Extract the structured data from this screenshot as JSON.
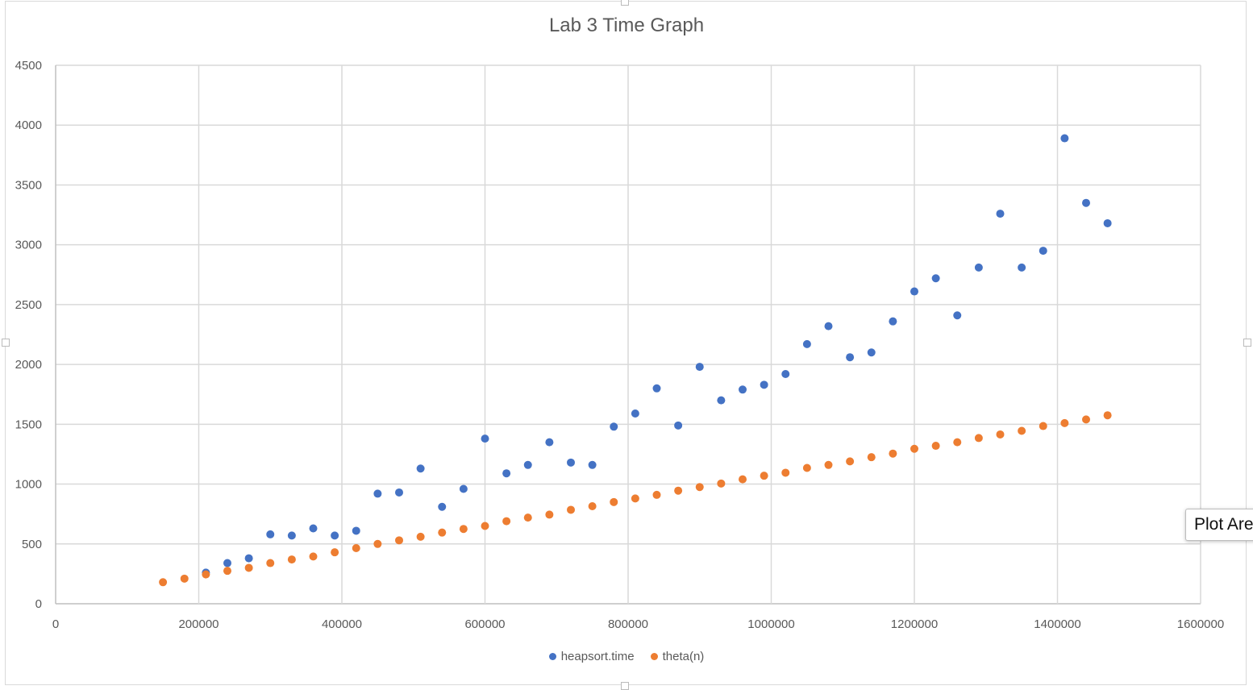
{
  "chart_data": {
    "type": "scatter",
    "title": "Lab 3 Time Graph",
    "xlabel": "",
    "ylabel": "",
    "xlim": [
      0,
      1600000
    ],
    "ylim": [
      0,
      4500
    ],
    "x_ticks": [
      "0",
      "200000",
      "400000",
      "600000",
      "800000",
      "1000000",
      "1200000",
      "1400000",
      "1600000"
    ],
    "y_ticks": [
      "0",
      "500",
      "1000",
      "1500",
      "2000",
      "2500",
      "3000",
      "3500",
      "4000",
      "4500"
    ],
    "grid": true,
    "legend_position": "bottom",
    "series": [
      {
        "name": "heapsort.time",
        "color": "#4472c4",
        "points": [
          [
            210000,
            260
          ],
          [
            240000,
            340
          ],
          [
            270000,
            380
          ],
          [
            300000,
            580
          ],
          [
            330000,
            570
          ],
          [
            360000,
            630
          ],
          [
            390000,
            570
          ],
          [
            420000,
            610
          ],
          [
            450000,
            920
          ],
          [
            480000,
            930
          ],
          [
            510000,
            1130
          ],
          [
            540000,
            810
          ],
          [
            570000,
            960
          ],
          [
            600000,
            1380
          ],
          [
            630000,
            1090
          ],
          [
            660000,
            1160
          ],
          [
            690000,
            1350
          ],
          [
            720000,
            1180
          ],
          [
            750000,
            1160
          ],
          [
            780000,
            1480
          ],
          [
            810000,
            1590
          ],
          [
            840000,
            1800
          ],
          [
            870000,
            1490
          ],
          [
            900000,
            1980
          ],
          [
            930000,
            1700
          ],
          [
            960000,
            1790
          ],
          [
            990000,
            1830
          ],
          [
            1020000,
            1920
          ],
          [
            1050000,
            2170
          ],
          [
            1080000,
            2320
          ],
          [
            1110000,
            2060
          ],
          [
            1140000,
            2100
          ],
          [
            1170000,
            2360
          ],
          [
            1200000,
            2610
          ],
          [
            1230000,
            2720
          ],
          [
            1260000,
            2410
          ],
          [
            1290000,
            2810
          ],
          [
            1320000,
            3260
          ],
          [
            1350000,
            2810
          ],
          [
            1380000,
            2950
          ],
          [
            1410000,
            3890
          ],
          [
            1440000,
            3350
          ],
          [
            1470000,
            3180
          ]
        ]
      },
      {
        "name": "theta(n)",
        "color": "#ed7d31",
        "points": [
          [
            150000,
            180
          ],
          [
            180000,
            210
          ],
          [
            210000,
            245
          ],
          [
            240000,
            275
          ],
          [
            270000,
            300
          ],
          [
            300000,
            340
          ],
          [
            330000,
            370
          ],
          [
            360000,
            395
          ],
          [
            390000,
            430
          ],
          [
            420000,
            465
          ],
          [
            450000,
            500
          ],
          [
            480000,
            530
          ],
          [
            510000,
            560
          ],
          [
            540000,
            595
          ],
          [
            570000,
            625
          ],
          [
            600000,
            650
          ],
          [
            630000,
            690
          ],
          [
            660000,
            720
          ],
          [
            690000,
            745
          ],
          [
            720000,
            785
          ],
          [
            750000,
            815
          ],
          [
            780000,
            850
          ],
          [
            810000,
            880
          ],
          [
            840000,
            910
          ],
          [
            870000,
            945
          ],
          [
            900000,
            975
          ],
          [
            930000,
            1005
          ],
          [
            960000,
            1040
          ],
          [
            990000,
            1070
          ],
          [
            1020000,
            1095
          ],
          [
            1050000,
            1135
          ],
          [
            1080000,
            1160
          ],
          [
            1110000,
            1190
          ],
          [
            1140000,
            1225
          ],
          [
            1170000,
            1255
          ],
          [
            1200000,
            1295
          ],
          [
            1230000,
            1320
          ],
          [
            1260000,
            1350
          ],
          [
            1290000,
            1385
          ],
          [
            1320000,
            1415
          ],
          [
            1350000,
            1445
          ],
          [
            1380000,
            1485
          ],
          [
            1410000,
            1510
          ],
          [
            1440000,
            1540
          ],
          [
            1470000,
            1575
          ]
        ]
      }
    ]
  },
  "tooltip": {
    "text": "Plot Are"
  }
}
